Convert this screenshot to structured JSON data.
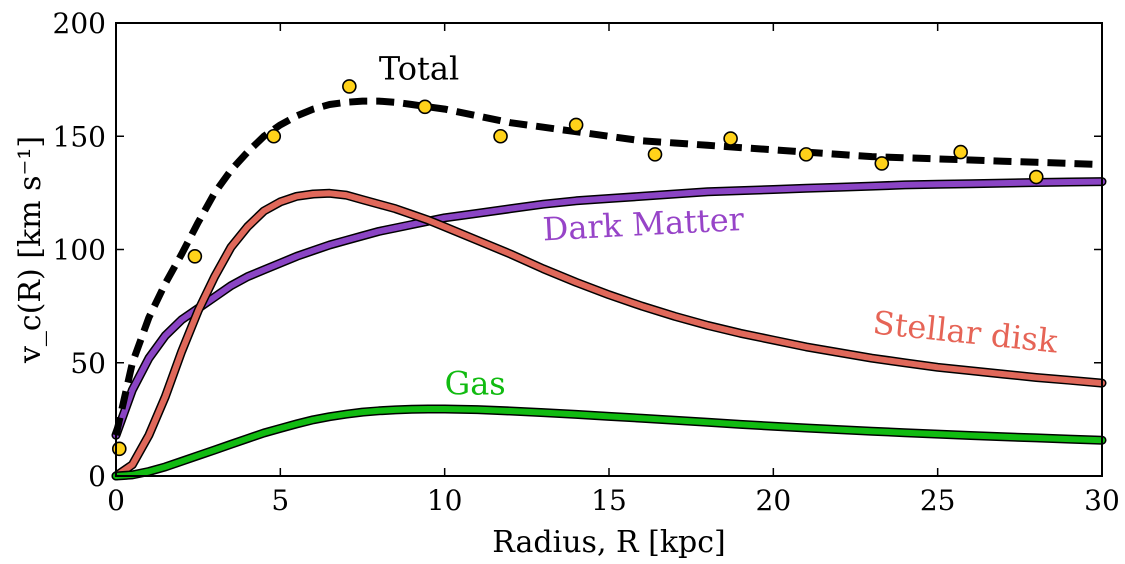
{
  "chart_data": {
    "type": "line",
    "xlabel": "Radius, R [kpc]",
    "ylabel": "v_c(R) [km s⁻¹]",
    "xlim": [
      0,
      30
    ],
    "ylim": [
      0,
      200
    ],
    "xticks": [
      "0",
      "5",
      "10",
      "15",
      "20",
      "25",
      "30"
    ],
    "yticks": [
      "0",
      "50",
      "100",
      "150",
      "200"
    ],
    "grid": false,
    "legend": "none",
    "x": [
      0,
      0.5,
      1,
      1.5,
      2,
      2.5,
      3,
      3.5,
      4,
      4.5,
      5,
      5.5,
      6,
      6.5,
      7,
      7.5,
      8,
      8.5,
      9,
      9.5,
      10,
      11,
      12,
      13,
      14,
      15,
      16,
      17,
      18,
      19,
      20,
      21,
      22,
      23,
      24,
      25,
      26,
      27,
      28,
      29,
      30
    ],
    "series": [
      {
        "name": "Total",
        "color": "#000000",
        "style": "dashed",
        "values": [
          18,
          50,
          70,
          85,
          98,
          112,
          125,
          135,
          143,
          150,
          155,
          159,
          162,
          164,
          165,
          165.5,
          165.5,
          165,
          164,
          163,
          162,
          159,
          156,
          154,
          152,
          150,
          148,
          147,
          146,
          145,
          144,
          143,
          142,
          141,
          140.5,
          140,
          139.5,
          139,
          138.5,
          138,
          137.5
        ]
      },
      {
        "name": "Dark Matter",
        "color": "#8a44c4",
        "style": "solid",
        "values": [
          18,
          38,
          52,
          62,
          69,
          74,
          79,
          84,
          88,
          91,
          94,
          97,
          99.5,
          102,
          104,
          106,
          108,
          109.5,
          111,
          112.5,
          114,
          116,
          118,
          120,
          121.5,
          122.5,
          123.5,
          124.5,
          125.5,
          126,
          126.5,
          127,
          127.5,
          128,
          128.5,
          128.8,
          129,
          129.3,
          129.6,
          129.8,
          130
        ]
      },
      {
        "name": "Stellar disk",
        "color": "#e0685a",
        "style": "solid",
        "values": [
          0,
          5,
          18,
          35,
          55,
          73,
          88,
          101,
          110,
          117,
          121,
          123.5,
          124.5,
          124.8,
          124,
          122,
          120,
          118,
          115.5,
          113,
          110,
          104,
          98,
          91.5,
          85.5,
          80,
          75,
          70.5,
          66.5,
          63,
          60,
          57,
          54.5,
          52,
          50,
          48,
          46.5,
          45,
          43.5,
          42.3,
          41
        ]
      },
      {
        "name": "Gas",
        "color": "#11bb11",
        "style": "solid",
        "values": [
          0,
          0.5,
          2,
          4,
          6.5,
          9,
          11.5,
          14,
          16.5,
          19,
          21,
          23,
          24.8,
          26.2,
          27.3,
          28.2,
          28.8,
          29.2,
          29.5,
          29.6,
          29.6,
          29.3,
          28.7,
          28,
          27.2,
          26.3,
          25.5,
          24.6,
          23.7,
          22.8,
          22,
          21.2,
          20.5,
          19.8,
          19.1,
          18.5,
          17.9,
          17.3,
          16.8,
          16.3,
          15.8
        ]
      }
    ],
    "observed": {
      "color": "#ffd21a",
      "x": [
        0.1,
        2.4,
        4.8,
        7.1,
        9.4,
        11.7,
        14.0,
        16.4,
        18.7,
        21.0,
        23.3,
        25.7,
        28.0
      ],
      "y": [
        12,
        97,
        150,
        172,
        163,
        150,
        155,
        142,
        149,
        142,
        138,
        143,
        132
      ]
    },
    "annotations": [
      {
        "text": "Total",
        "color": "#000000",
        "x": 8.0,
        "y": 175,
        "rotate": 0
      },
      {
        "text": "Dark Matter",
        "color": "#9744c8",
        "x": 13.0,
        "y": 104,
        "rotate": -3
      },
      {
        "text": "Stellar disk",
        "color": "#e66456",
        "x": 23.0,
        "y": 63,
        "rotate": 6
      },
      {
        "text": "Gas",
        "color": "#11bb11",
        "x": 10.0,
        "y": 36,
        "rotate": 0
      }
    ]
  }
}
